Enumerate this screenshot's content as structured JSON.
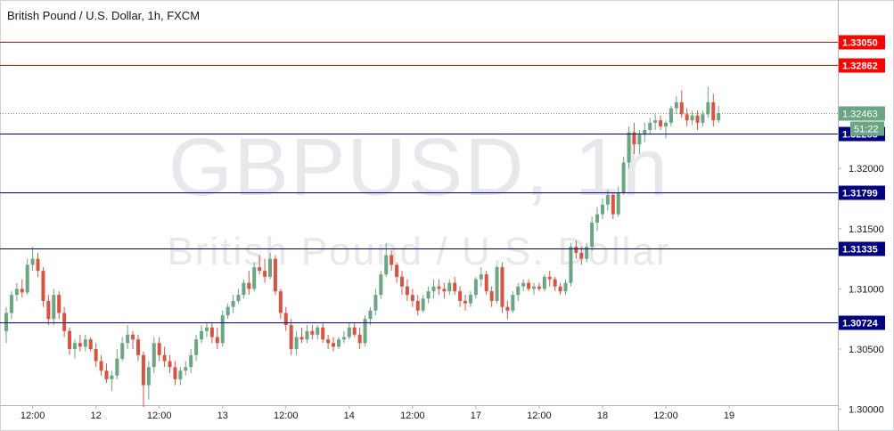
{
  "chart_title": "British Pound / U.S. Dollar, 1h, FXCM",
  "watermark": {
    "symbol": "GBPUSD, 1h",
    "description": "British Pound / U.S. Dollar"
  },
  "countdown": "51:22",
  "colors": {
    "up": "#6ba583",
    "down": "#d75442",
    "resistance": "#ff0000",
    "support": "#000080",
    "last_price_label": "#6ba583",
    "grid": "#f0f3fa"
  },
  "chart_data": {
    "type": "candlestick",
    "title": "British Pound / U.S. Dollar, 1h, FXCM",
    "y_range": [
      1.299,
      1.3325
    ],
    "y_ticks": [
      {
        "value": 1.3,
        "label": "1.30000"
      },
      {
        "value": 1.305,
        "label": "1.30500"
      },
      {
        "value": 1.31,
        "label": "1.31000"
      },
      {
        "value": 1.315,
        "label": "1.31500"
      },
      {
        "value": 1.32,
        "label": "1.32000"
      }
    ],
    "x_ticks": [
      {
        "index": 5,
        "label": "12:00"
      },
      {
        "index": 17,
        "label": "12"
      },
      {
        "index": 29,
        "label": "12:00"
      },
      {
        "index": 41,
        "label": "13"
      },
      {
        "index": 53,
        "label": "12:00"
      },
      {
        "index": 65,
        "label": "14"
      },
      {
        "index": 77,
        "label": "12:00"
      },
      {
        "index": 89,
        "label": "17"
      },
      {
        "index": 101,
        "label": "12:00"
      },
      {
        "index": 113,
        "label": "18"
      },
      {
        "index": 125,
        "label": "12:00"
      },
      {
        "index": 137,
        "label": "19"
      }
    ],
    "levels": [
      {
        "value": 1.3305,
        "label": "1.33050",
        "kind": "resistance"
      },
      {
        "value": 1.32862,
        "label": "1.32862",
        "kind": "resistance"
      },
      {
        "value": 1.32288,
        "label": "1.32288",
        "kind": "support"
      },
      {
        "value": 1.31799,
        "label": "1.31799",
        "kind": "support"
      },
      {
        "value": 1.31335,
        "label": "1.31335",
        "kind": "support"
      },
      {
        "value": 1.30724,
        "label": "1.30724",
        "kind": "support"
      }
    ],
    "last_price": {
      "value": 1.32463,
      "label": "1.32463"
    },
    "candles": [
      [
        1.3065,
        1.3085,
        1.3055,
        1.308
      ],
      [
        1.308,
        1.3098,
        1.3075,
        1.3095
      ],
      [
        1.3095,
        1.3105,
        1.309,
        1.31
      ],
      [
        1.31,
        1.3108,
        1.3093,
        1.3097
      ],
      [
        1.3097,
        1.3125,
        1.3095,
        1.312
      ],
      [
        1.312,
        1.3135,
        1.3115,
        1.3125
      ],
      [
        1.3125,
        1.313,
        1.311,
        1.3115
      ],
      [
        1.3115,
        1.3118,
        1.3085,
        1.309
      ],
      [
        1.309,
        1.3095,
        1.307,
        1.3075
      ],
      [
        1.3075,
        1.31,
        1.307,
        1.3095
      ],
      [
        1.3095,
        1.3098,
        1.3075,
        1.308
      ],
      [
        1.308,
        1.3085,
        1.306,
        1.3065
      ],
      [
        1.3065,
        1.3068,
        1.3045,
        1.305
      ],
      [
        1.305,
        1.3058,
        1.3042,
        1.3055
      ],
      [
        1.3055,
        1.3062,
        1.3048,
        1.3052
      ],
      [
        1.3052,
        1.3062,
        1.3048,
        1.3058
      ],
      [
        1.3058,
        1.306,
        1.3048,
        1.305
      ],
      [
        1.305,
        1.3055,
        1.3035,
        1.304
      ],
      [
        1.304,
        1.3045,
        1.3028,
        1.3032
      ],
      [
        1.3032,
        1.3038,
        1.3022,
        1.3025
      ],
      [
        1.3025,
        1.3032,
        1.3015,
        1.3028
      ],
      [
        1.3028,
        1.305,
        1.3025,
        1.3042
      ],
      [
        1.3042,
        1.306,
        1.304,
        1.3055
      ],
      [
        1.3055,
        1.307,
        1.305,
        1.3062
      ],
      [
        1.3062,
        1.3065,
        1.305,
        1.3058
      ],
      [
        1.3058,
        1.3062,
        1.304,
        1.3045
      ],
      [
        1.3045,
        1.3048,
        1.3002,
        1.302
      ],
      [
        1.302,
        1.304,
        1.3008,
        1.3035
      ],
      [
        1.3035,
        1.306,
        1.303,
        1.3055
      ],
      [
        1.3055,
        1.306,
        1.304,
        1.3045
      ],
      [
        1.3045,
        1.3052,
        1.3035,
        1.304
      ],
      [
        1.304,
        1.3045,
        1.303,
        1.3035
      ],
      [
        1.3035,
        1.304,
        1.302,
        1.3025
      ],
      [
        1.3025,
        1.3035,
        1.302,
        1.3032
      ],
      [
        1.3032,
        1.304,
        1.3028,
        1.3035
      ],
      [
        1.3035,
        1.305,
        1.303,
        1.3045
      ],
      [
        1.3045,
        1.3062,
        1.304,
        1.3058
      ],
      [
        1.3058,
        1.307,
        1.3055,
        1.3065
      ],
      [
        1.3065,
        1.3072,
        1.306,
        1.3068
      ],
      [
        1.3068,
        1.3072,
        1.3055,
        1.306
      ],
      [
        1.306,
        1.3068,
        1.305,
        1.3055
      ],
      [
        1.3055,
        1.3082,
        1.3052,
        1.3078
      ],
      [
        1.3078,
        1.3088,
        1.3075,
        1.3085
      ],
      [
        1.3085,
        1.3095,
        1.308,
        1.309
      ],
      [
        1.309,
        1.31,
        1.3088,
        1.3095
      ],
      [
        1.3095,
        1.3108,
        1.3092,
        1.3105
      ],
      [
        1.3105,
        1.3115,
        1.3095,
        1.31
      ],
      [
        1.31,
        1.3122,
        1.3098,
        1.3118
      ],
      [
        1.3118,
        1.3128,
        1.3112,
        1.3115
      ],
      [
        1.3115,
        1.3125,
        1.3105,
        1.311
      ],
      [
        1.311,
        1.313,
        1.3108,
        1.3125
      ],
      [
        1.3125,
        1.3128,
        1.3095,
        1.3098
      ],
      [
        1.3098,
        1.31,
        1.3075,
        1.308
      ],
      [
        1.308,
        1.3085,
        1.3065,
        1.307
      ],
      [
        1.307,
        1.3075,
        1.3045,
        1.305
      ],
      [
        1.305,
        1.3065,
        1.3045,
        1.306
      ],
      [
        1.306,
        1.3068,
        1.3055,
        1.3058
      ],
      [
        1.3058,
        1.307,
        1.3055,
        1.3065
      ],
      [
        1.3065,
        1.307,
        1.3058,
        1.3062
      ],
      [
        1.3062,
        1.307,
        1.3058,
        1.3068
      ],
      [
        1.3068,
        1.3072,
        1.3055,
        1.3058
      ],
      [
        1.3058,
        1.3062,
        1.305,
        1.3055
      ],
      [
        1.3055,
        1.306,
        1.3048,
        1.3052
      ],
      [
        1.3052,
        1.306,
        1.305,
        1.3058
      ],
      [
        1.3058,
        1.3065,
        1.3055,
        1.306
      ],
      [
        1.306,
        1.3072,
        1.3058,
        1.3068
      ],
      [
        1.3068,
        1.3072,
        1.306,
        1.3062
      ],
      [
        1.3062,
        1.3068,
        1.305,
        1.3055
      ],
      [
        1.3055,
        1.3078,
        1.3052,
        1.3075
      ],
      [
        1.3075,
        1.3085,
        1.307,
        1.3082
      ],
      [
        1.3082,
        1.31,
        1.3078,
        1.3095
      ],
      [
        1.3095,
        1.3115,
        1.3092,
        1.3112
      ],
      [
        1.3112,
        1.3138,
        1.311,
        1.3128
      ],
      [
        1.3128,
        1.3132,
        1.3115,
        1.312
      ],
      [
        1.312,
        1.3122,
        1.3105,
        1.311
      ],
      [
        1.311,
        1.3115,
        1.3095,
        1.3102
      ],
      [
        1.3102,
        1.3108,
        1.309,
        1.3095
      ],
      [
        1.3095,
        1.31,
        1.3085,
        1.309
      ],
      [
        1.309,
        1.3095,
        1.3078,
        1.3082
      ],
      [
        1.3082,
        1.3095,
        1.308,
        1.3092
      ],
      [
        1.3092,
        1.3102,
        1.3088,
        1.3098
      ],
      [
        1.3098,
        1.3108,
        1.3092,
        1.3102
      ],
      [
        1.3102,
        1.3108,
        1.3095,
        1.31
      ],
      [
        1.31,
        1.3105,
        1.3092,
        1.3098
      ],
      [
        1.3098,
        1.3108,
        1.3095,
        1.3105
      ],
      [
        1.3105,
        1.311,
        1.3095,
        1.3098
      ],
      [
        1.3098,
        1.3102,
        1.3085,
        1.309
      ],
      [
        1.309,
        1.3095,
        1.3082,
        1.3088
      ],
      [
        1.3088,
        1.3098,
        1.3085,
        1.3095
      ],
      [
        1.3095,
        1.311,
        1.3092,
        1.3108
      ],
      [
        1.3108,
        1.3118,
        1.3102,
        1.3112
      ],
      [
        1.3112,
        1.3115,
        1.3095,
        1.3098
      ],
      [
        1.3098,
        1.3102,
        1.3085,
        1.309
      ],
      [
        1.309,
        1.312,
        1.3088,
        1.3118
      ],
      [
        1.3118,
        1.3122,
        1.308,
        1.3085
      ],
      [
        1.3085,
        1.309,
        1.3075,
        1.3082
      ],
      [
        1.3082,
        1.3098,
        1.308,
        1.3095
      ],
      [
        1.3095,
        1.3105,
        1.309,
        1.3102
      ],
      [
        1.3102,
        1.3108,
        1.3098,
        1.3105
      ],
      [
        1.3105,
        1.3108,
        1.3098,
        1.31
      ],
      [
        1.31,
        1.3105,
        1.3095,
        1.3102
      ],
      [
        1.3102,
        1.3105,
        1.3098,
        1.31
      ],
      [
        1.31,
        1.3112,
        1.3098,
        1.311
      ],
      [
        1.311,
        1.3115,
        1.3102,
        1.3108
      ],
      [
        1.3108,
        1.311,
        1.3098,
        1.3102
      ],
      [
        1.3102,
        1.3105,
        1.3095,
        1.3098
      ],
      [
        1.3098,
        1.3108,
        1.3095,
        1.3105
      ],
      [
        1.3105,
        1.3138,
        1.3102,
        1.3135
      ],
      [
        1.3135,
        1.314,
        1.3125,
        1.313
      ],
      [
        1.313,
        1.3135,
        1.312,
        1.3125
      ],
      [
        1.3125,
        1.3138,
        1.3122,
        1.3135
      ],
      [
        1.3135,
        1.316,
        1.3132,
        1.3155
      ],
      [
        1.3155,
        1.3168,
        1.3148,
        1.3162
      ],
      [
        1.3162,
        1.3175,
        1.3158,
        1.317
      ],
      [
        1.317,
        1.3182,
        1.3165,
        1.3178
      ],
      [
        1.3178,
        1.318,
        1.3158,
        1.3162
      ],
      [
        1.3162,
        1.3185,
        1.316,
        1.318
      ],
      [
        1.318,
        1.321,
        1.3178,
        1.3205
      ],
      [
        1.3205,
        1.3235,
        1.32,
        1.323
      ],
      [
        1.323,
        1.3238,
        1.3212,
        1.322
      ],
      [
        1.322,
        1.3232,
        1.3212,
        1.3228
      ],
      [
        1.3228,
        1.3238,
        1.3222,
        1.3232
      ],
      [
        1.3232,
        1.3242,
        1.3228,
        1.3238
      ],
      [
        1.3238,
        1.3245,
        1.3232,
        1.324
      ],
      [
        1.324,
        1.3244,
        1.3232,
        1.3235
      ],
      [
        1.3235,
        1.324,
        1.3225,
        1.3238
      ],
      [
        1.3238,
        1.3252,
        1.3235,
        1.325
      ],
      [
        1.325,
        1.326,
        1.3245,
        1.3255
      ],
      [
        1.3255,
        1.3265,
        1.3242,
        1.3245
      ],
      [
        1.3245,
        1.325,
        1.3235,
        1.324
      ],
      [
        1.324,
        1.3248,
        1.3236,
        1.3244
      ],
      [
        1.3244,
        1.3248,
        1.3232,
        1.3238
      ],
      [
        1.3238,
        1.3248,
        1.3235,
        1.3245
      ],
      [
        1.3245,
        1.3268,
        1.3242,
        1.3255
      ],
      [
        1.3255,
        1.3262,
        1.3235,
        1.324
      ],
      [
        1.324,
        1.3252,
        1.3238,
        1.3246
      ]
    ]
  }
}
